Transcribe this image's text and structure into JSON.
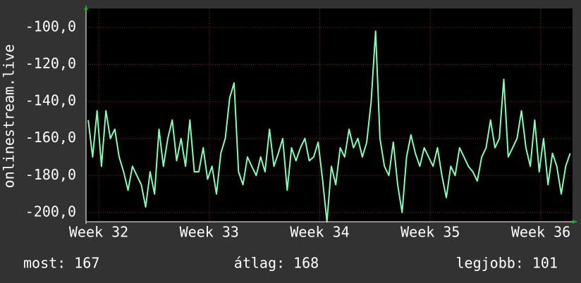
{
  "chart_data": {
    "type": "line",
    "y_label": "onlinestream.live",
    "color": "#7dffb4",
    "grid": true,
    "xlim": [
      31.885,
      36.287
    ],
    "xticks": [
      {
        "value": 32,
        "label": "Week 32"
      },
      {
        "value": 33,
        "label": "Week 33"
      },
      {
        "value": 34,
        "label": "Week 34"
      },
      {
        "value": 35,
        "label": "Week 35"
      },
      {
        "value": 36,
        "label": "Week 36"
      }
    ],
    "ylim": [
      -205,
      -89.7
    ],
    "yticks": [
      {
        "value": -100,
        "label": "-100,0"
      },
      {
        "value": -120,
        "label": "-120,0"
      },
      {
        "value": -140,
        "label": "-140,0"
      },
      {
        "value": -160,
        "label": "-160,0"
      },
      {
        "value": -180,
        "label": "-180,0"
      },
      {
        "value": -200,
        "label": "-200,0"
      }
    ],
    "x": [
      31.905,
      31.945,
      31.985,
      32.025,
      32.065,
      32.105,
      32.145,
      32.185,
      32.225,
      32.265,
      32.305,
      32.345,
      32.385,
      32.425,
      32.465,
      32.505,
      32.545,
      32.585,
      32.625,
      32.665,
      32.705,
      32.745,
      32.785,
      32.825,
      32.865,
      32.905,
      32.945,
      32.985,
      33.025,
      33.065,
      33.105,
      33.145,
      33.185,
      33.225,
      33.265,
      33.305,
      33.345,
      33.385,
      33.425,
      33.465,
      33.505,
      33.545,
      33.585,
      33.625,
      33.665,
      33.705,
      33.745,
      33.785,
      33.825,
      33.865,
      33.905,
      33.945,
      33.985,
      34.025,
      34.065,
      34.105,
      34.145,
      34.185,
      34.225,
      34.265,
      34.305,
      34.345,
      34.385,
      34.425,
      34.465,
      34.505,
      34.545,
      34.585,
      34.625,
      34.665,
      34.705,
      34.745,
      34.785,
      34.825,
      34.865,
      34.905,
      34.945,
      34.985,
      35.025,
      35.065,
      35.105,
      35.145,
      35.185,
      35.225,
      35.265,
      35.305,
      35.345,
      35.385,
      35.425,
      35.465,
      35.505,
      35.545,
      35.585,
      35.625,
      35.665,
      35.705,
      35.745,
      35.785,
      35.825,
      35.865,
      35.905,
      35.945,
      35.985,
      36.025,
      36.065,
      36.105,
      36.145,
      36.185,
      36.225,
      36.265
    ],
    "series": [
      {
        "name": "onlinestream.live",
        "values": [
          -150,
          -170,
          -145,
          -175,
          -145,
          -160,
          -155,
          -170,
          -178,
          -188,
          -175,
          -180,
          -185,
          -197,
          -178,
          -190,
          -155,
          -175,
          -160,
          -150,
          -172,
          -160,
          -175,
          -150,
          -178,
          -178,
          -165,
          -182,
          -175,
          -190,
          -168,
          -160,
          -138,
          -130,
          -178,
          -185,
          -170,
          -175,
          -180,
          -170,
          -178,
          -155,
          -175,
          -168,
          -160,
          -188,
          -165,
          -172,
          -165,
          -160,
          -172,
          -170,
          -162,
          -182,
          -205,
          -175,
          -185,
          -165,
          -170,
          -155,
          -165,
          -160,
          -170,
          -162,
          -140,
          -102,
          -160,
          -175,
          -180,
          -162,
          -185,
          -200,
          -170,
          -158,
          -168,
          -175,
          -165,
          -170,
          -175,
          -165,
          -180,
          -192,
          -175,
          -180,
          -165,
          -170,
          -175,
          -178,
          -183,
          -170,
          -165,
          -150,
          -165,
          -160,
          -128,
          -170,
          -165,
          -160,
          -145,
          -165,
          -175,
          -150,
          -178,
          -160,
          -185,
          -168,
          -175,
          -190,
          -175,
          -168
        ]
      }
    ],
    "summary": [
      "most: 167",
      "átlag: 168",
      "legjobb: 101"
    ]
  }
}
